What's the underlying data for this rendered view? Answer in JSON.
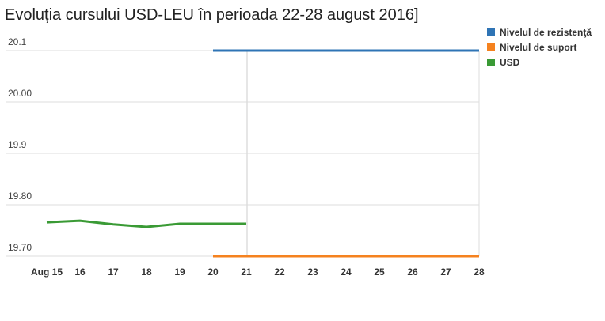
{
  "chart_data": {
    "type": "line",
    "title": "Evoluția cursului USD-LEU în perioada 22-28 august 2016]",
    "categories": [
      "Aug 15",
      "16",
      "17",
      "18",
      "19",
      "20",
      "21",
      "22",
      "23",
      "24",
      "25",
      "26",
      "27",
      "28"
    ],
    "series": [
      {
        "name": "Nivelul de rezistenţă",
        "color": "#2f74b5",
        "values": [
          null,
          null,
          null,
          null,
          null,
          20.1,
          20.1,
          20.1,
          20.1,
          20.1,
          20.1,
          20.1,
          20.1,
          20.1
        ]
      },
      {
        "name": "Nivelul de suport",
        "color": "#f5821f",
        "values": [
          null,
          null,
          null,
          null,
          null,
          19.7,
          19.7,
          19.7,
          19.7,
          19.7,
          19.7,
          19.7,
          19.7,
          19.7
        ]
      },
      {
        "name": "USD",
        "color": "#3a9a35",
        "values": [
          19.766,
          19.769,
          19.762,
          19.757,
          19.763,
          19.763,
          19.763,
          null,
          null,
          null,
          null,
          null,
          null,
          null
        ]
      }
    ],
    "ylim": [
      19.7,
      20.1
    ],
    "yticks": [
      {
        "value": 19.7,
        "label": "19.70"
      },
      {
        "value": 19.8,
        "label": "19.80"
      },
      19.9,
      {
        "value": 20,
        "label": "20.00"
      },
      20.1
    ],
    "grid": true,
    "legend": "right"
  }
}
